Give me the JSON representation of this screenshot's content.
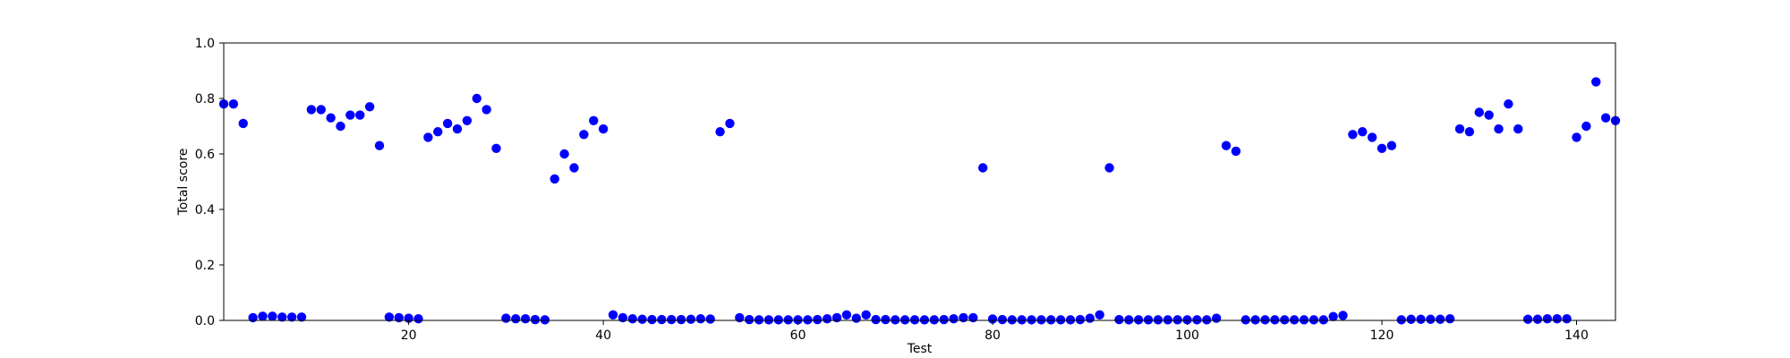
{
  "chart_data": {
    "type": "scatter",
    "xlabel": "Test",
    "ylabel": "Total score",
    "xlim": [
      1,
      144
    ],
    "ylim": [
      0.0,
      1.0
    ],
    "xticks": [
      20,
      40,
      60,
      80,
      100,
      120,
      140
    ],
    "xtick_labels": [
      "20",
      "40",
      "60",
      "80",
      "100",
      "120",
      "140"
    ],
    "yticks": [
      0.0,
      0.2,
      0.4,
      0.6,
      0.8,
      1.0
    ],
    "ytick_labels": [
      "0.0",
      "0.2",
      "0.4",
      "0.6",
      "0.8",
      "1.0"
    ],
    "grid": false,
    "marker_color": "#0000ff",
    "series": [
      {
        "x": [
          1,
          2,
          3,
          4,
          5,
          6,
          7,
          8,
          9,
          10,
          11,
          12,
          13,
          14,
          15,
          16,
          17,
          18,
          19,
          20,
          21,
          22,
          23,
          24,
          25,
          26,
          27,
          28,
          29,
          30,
          31,
          32,
          33,
          34,
          35,
          36,
          37,
          38,
          39,
          40,
          41,
          42,
          43,
          44,
          45,
          46,
          47,
          48,
          49,
          50,
          51,
          52,
          53,
          54,
          55,
          56,
          57,
          58,
          59,
          60,
          61,
          62,
          63,
          64,
          65,
          66,
          67,
          68,
          69,
          70,
          71,
          72,
          73,
          74,
          75,
          76,
          77,
          78,
          79,
          80,
          81,
          82,
          83,
          84,
          85,
          86,
          87,
          88,
          89,
          90,
          91,
          92,
          93,
          94,
          95,
          96,
          97,
          98,
          99,
          100,
          101,
          102,
          103,
          104,
          105,
          106,
          107,
          108,
          109,
          110,
          111,
          112,
          113,
          114,
          115,
          116,
          117,
          118,
          119,
          120,
          121,
          122,
          123,
          124,
          125,
          126,
          127,
          128,
          129,
          130,
          131,
          132,
          133,
          134,
          135,
          136,
          137,
          138,
          139,
          140,
          141,
          142,
          143,
          144
        ],
        "y": [
          0.78,
          0.78,
          0.71,
          0.01,
          0.015,
          0.015,
          0.012,
          0.012,
          0.012,
          0.76,
          0.76,
          0.73,
          0.7,
          0.74,
          0.74,
          0.77,
          0.63,
          0.012,
          0.01,
          0.008,
          0.006,
          0.66,
          0.68,
          0.71,
          0.69,
          0.72,
          0.8,
          0.76,
          0.62,
          0.008,
          0.006,
          0.006,
          0.003,
          0.002,
          0.51,
          0.6,
          0.55,
          0.67,
          0.72,
          0.69,
          0.02,
          0.01,
          0.006,
          0.004,
          0.003,
          0.003,
          0.003,
          0.003,
          0.004,
          0.006,
          0.005,
          0.68,
          0.71,
          0.01,
          0.003,
          0.002,
          0.002,
          0.002,
          0.002,
          0.002,
          0.002,
          0.003,
          0.006,
          0.01,
          0.02,
          0.008,
          0.02,
          0.003,
          0.003,
          0.002,
          0.002,
          0.002,
          0.002,
          0.002,
          0.003,
          0.006,
          0.01,
          0.01,
          0.55,
          0.005,
          0.003,
          0.002,
          0.002,
          0.002,
          0.002,
          0.002,
          0.002,
          0.002,
          0.003,
          0.008,
          0.02,
          0.55,
          0.003,
          0.002,
          0.002,
          0.002,
          0.002,
          0.002,
          0.002,
          0.002,
          0.002,
          0.002,
          0.008,
          0.63,
          0.61,
          0.002,
          0.002,
          0.002,
          0.002,
          0.002,
          0.002,
          0.002,
          0.002,
          0.002,
          0.014,
          0.018,
          0.67,
          0.68,
          0.66,
          0.62,
          0.63,
          0.002,
          0.004,
          0.004,
          0.004,
          0.004,
          0.006,
          0.69,
          0.68,
          0.75,
          0.74,
          0.69,
          0.78,
          0.69,
          0.004,
          0.004,
          0.006,
          0.006,
          0.006,
          0.66,
          0.7,
          0.86,
          0.73,
          0.72
        ]
      }
    ]
  }
}
